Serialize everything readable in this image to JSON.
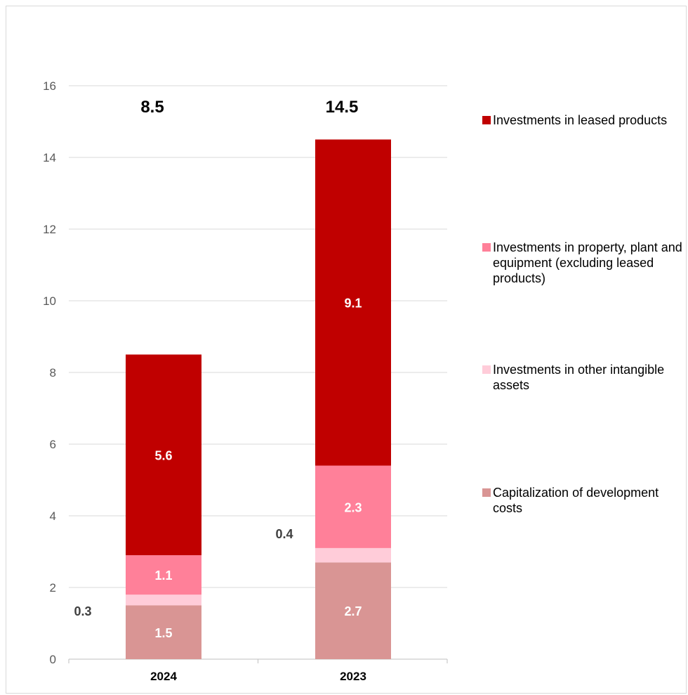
{
  "chart_data": {
    "type": "bar",
    "stacked": true,
    "categories": [
      "2024",
      "2023"
    ],
    "series": [
      {
        "name": "Capitalization of development costs",
        "values": [
          1.5,
          2.7
        ],
        "color": "#d99594"
      },
      {
        "name": "Investments in other intangible assets",
        "values": [
          0.3,
          0.4
        ],
        "color": "#ffccd9"
      },
      {
        "name": "Investments in property, plant and equipment (excluding leased products)",
        "values": [
          1.1,
          2.3
        ],
        "color": "#ff8099"
      },
      {
        "name": "Investments in leased products",
        "values": [
          5.6,
          9.1
        ],
        "color": "#c00000"
      }
    ],
    "data_labels": {
      "series_0": [
        "1.5",
        "2.7"
      ],
      "series_1": [
        "0.3",
        "0.4"
      ],
      "series_2": [
        "1.1",
        "2.3"
      ],
      "series_3": [
        "5.6",
        "9.1"
      ]
    },
    "totals": [
      "8.5",
      "14.5"
    ],
    "y_ticks": [
      "0",
      "2",
      "4",
      "6",
      "8",
      "10",
      "12",
      "14",
      "16"
    ],
    "ylim": [
      0,
      16
    ],
    "grid": true,
    "legend_position": "right",
    "legend_order": [
      3,
      2,
      1,
      0
    ]
  }
}
